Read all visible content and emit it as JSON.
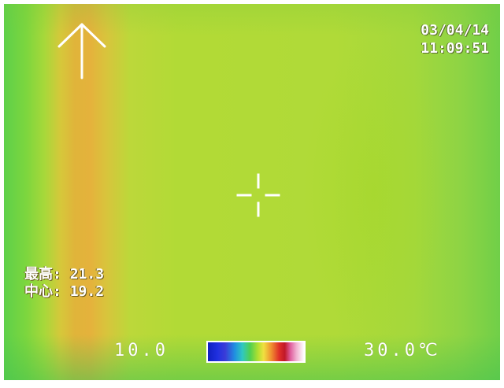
{
  "overlay": {
    "date": "03/04/14",
    "time": "11:09:51",
    "max_label": "最高:",
    "max_value": "21.3",
    "center_label": "中心:",
    "center_value": "19.2"
  },
  "scale": {
    "min": "10.0",
    "max": "30.0℃"
  },
  "icons": {
    "orientation": "up-arrow-icon",
    "spot": "crosshair-icon"
  },
  "colors": {
    "image_base": "#b0da38",
    "hot_band": "#e5b23c",
    "edge": "#5ed04a",
    "overlay_text": "#ffffff"
  }
}
